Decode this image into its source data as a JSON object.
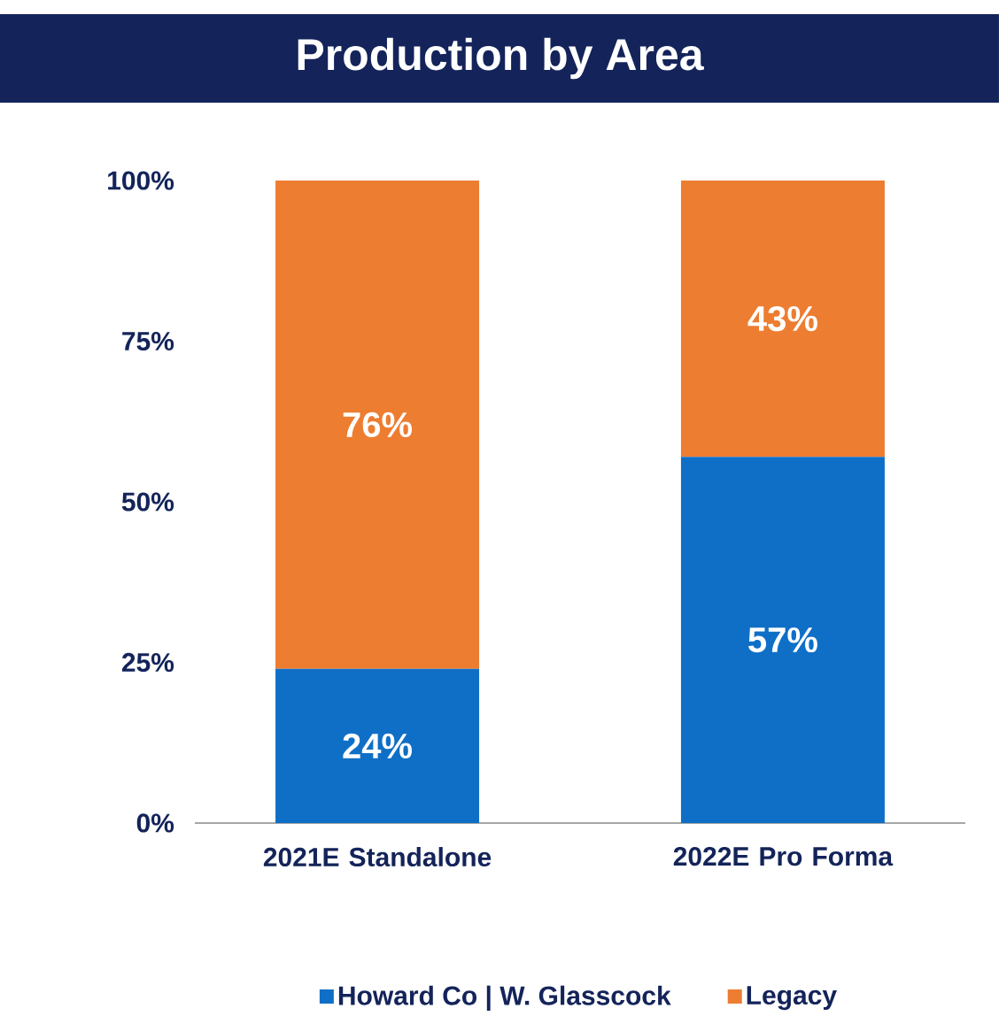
{
  "chart_data": {
    "type": "bar",
    "title": "Production by Area",
    "categories": [
      "2021E Standalone",
      "2022E Pro Forma"
    ],
    "stacked": true,
    "series": [
      {
        "name": "Howard Co | W. Glasscock",
        "color": "#0f6fc6",
        "values": [
          24,
          57
        ],
        "value_labels": [
          "24%",
          "57%"
        ]
      },
      {
        "name": "Legacy",
        "color": "#ed7d31",
        "values": [
          76,
          43
        ],
        "value_labels": [
          "76%",
          "43%"
        ]
      }
    ],
    "ylim": [
      0,
      100
    ],
    "yticks": [
      {
        "value": 0,
        "label": "0%"
      },
      {
        "value": 25,
        "label": "25%"
      },
      {
        "value": 50,
        "label": "50%"
      },
      {
        "value": 75,
        "label": "75%"
      },
      {
        "value": 100,
        "label": "100%"
      }
    ],
    "legend": "bottom",
    "grid": false
  }
}
